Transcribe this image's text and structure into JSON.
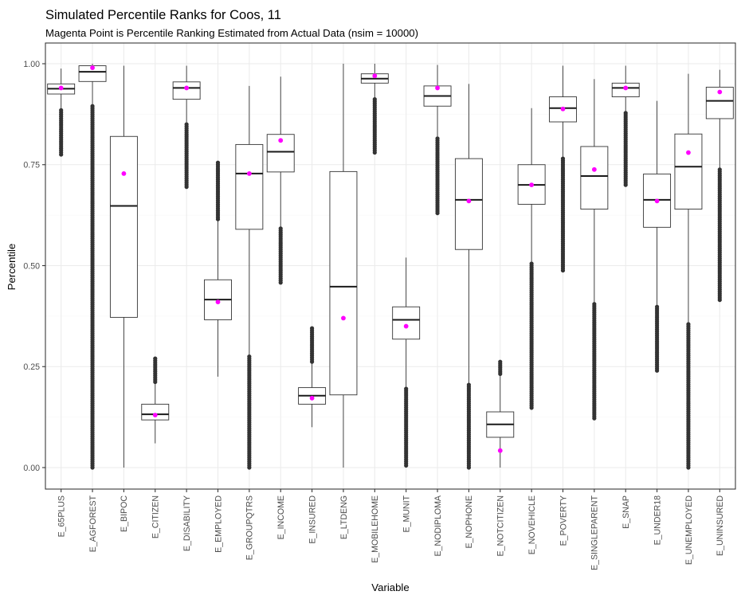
{
  "chart_data": {
    "type": "boxplot",
    "title": "Simulated Percentile Ranks for Coos, 11",
    "subtitle": "Magenta Point is Percentile Ranking Estimated from Actual Data (nsim = 10000)",
    "xlabel": "Variable",
    "ylabel": "Percentile",
    "ylim": [
      -0.04,
      1.04
    ],
    "yticks": [
      0.0,
      0.25,
      0.5,
      0.75,
      1.0
    ],
    "ytick_labels": [
      "0.00",
      "0.25",
      "0.50",
      "0.75",
      "1.00"
    ],
    "grid": true,
    "colors": {
      "box_outline": "#333333",
      "outlier": "#333333",
      "actual_point": "#ff00ff",
      "grid_major": "#ebebeb",
      "grid_minor": "#f5f5f5"
    },
    "categories": [
      "E_65PLUS",
      "E_AGFOREST",
      "E_BIPOC",
      "E_CITIZEN",
      "E_DISABILITY",
      "E_EMPLOYED",
      "E_GROUPQTRS",
      "E_INCOME",
      "E_INSURED",
      "E_LTDENG",
      "E_MOBILEHOME",
      "E_MUNIT",
      "E_NODIPLOMA",
      "E_NOPHONE",
      "E_NOTCITIZEN",
      "E_NOVEHICLE",
      "E_POVERTY",
      "E_SINGLEPARENT",
      "E_SNAP",
      "E_UNDER18",
      "E_UNEMPLOYED",
      "E_UNINSURED"
    ],
    "boxes": [
      {
        "whisker_low": 0.885,
        "q1": 0.925,
        "median": 0.938,
        "q3": 0.95,
        "whisker_high": 0.988,
        "outlier_range": [
          0.775,
          0.885
        ],
        "actual": 0.94
      },
      {
        "whisker_low": 0.895,
        "q1": 0.956,
        "median": 0.98,
        "q3": 0.995,
        "whisker_high": 1.0,
        "outlier_range": [
          0.0,
          0.895
        ],
        "actual": 0.99
      },
      {
        "whisker_low": 0.0,
        "q1": 0.372,
        "median": 0.648,
        "q3": 0.82,
        "whisker_high": 0.995,
        "outlier_range": null,
        "actual": 0.728
      },
      {
        "whisker_low": 0.06,
        "q1": 0.118,
        "median": 0.132,
        "q3": 0.157,
        "whisker_high": 0.212,
        "outlier_range": [
          0.212,
          0.27
        ],
        "actual": 0.13
      },
      {
        "whisker_low": 0.855,
        "q1": 0.912,
        "median": 0.94,
        "q3": 0.955,
        "whisker_high": 0.995,
        "outlier_range": [
          0.695,
          0.85
        ],
        "actual": 0.94
      },
      {
        "whisker_low": 0.225,
        "q1": 0.366,
        "median": 0.416,
        "q3": 0.465,
        "whisker_high": 0.615,
        "outlier_range": [
          0.615,
          0.755
        ],
        "actual": 0.41
      },
      {
        "whisker_low": 0.28,
        "q1": 0.59,
        "median": 0.728,
        "q3": 0.8,
        "whisker_high": 0.945,
        "outlier_range": [
          0.0,
          0.275
        ],
        "actual": 0.728
      },
      {
        "whisker_low": 0.595,
        "q1": 0.732,
        "median": 0.782,
        "q3": 0.825,
        "whisker_high": 0.968,
        "outlier_range": [
          0.458,
          0.592
        ],
        "actual": 0.81
      },
      {
        "whisker_low": 0.1,
        "q1": 0.157,
        "median": 0.178,
        "q3": 0.198,
        "whisker_high": 0.262,
        "outlier_range": [
          0.262,
          0.345
        ],
        "actual": 0.172
      },
      {
        "whisker_low": 0.0,
        "q1": 0.18,
        "median": 0.448,
        "q3": 0.733,
        "whisker_high": 1.0,
        "outlier_range": null,
        "actual": 0.37
      },
      {
        "whisker_low": 0.915,
        "q1": 0.952,
        "median": 0.963,
        "q3": 0.975,
        "whisker_high": 1.0,
        "outlier_range": [
          0.78,
          0.912
        ],
        "actual": 0.97
      },
      {
        "whisker_low": 0.2,
        "q1": 0.318,
        "median": 0.366,
        "q3": 0.398,
        "whisker_high": 0.52,
        "outlier_range": [
          0.005,
          0.195
        ],
        "actual": 0.35
      },
      {
        "whisker_low": 0.82,
        "q1": 0.895,
        "median": 0.92,
        "q3": 0.945,
        "whisker_high": 0.997,
        "outlier_range": [
          0.63,
          0.815
        ],
        "actual": 0.94
      },
      {
        "whisker_low": 0.205,
        "q1": 0.54,
        "median": 0.663,
        "q3": 0.765,
        "whisker_high": 0.95,
        "outlier_range": [
          0.0,
          0.205
        ],
        "actual": 0.66
      },
      {
        "whisker_low": 0.0,
        "q1": 0.075,
        "median": 0.107,
        "q3": 0.138,
        "whisker_high": 0.232,
        "outlier_range": [
          0.232,
          0.262
        ],
        "actual": 0.042
      },
      {
        "whisker_low": 0.51,
        "q1": 0.652,
        "median": 0.7,
        "q3": 0.75,
        "whisker_high": 0.89,
        "outlier_range": [
          0.148,
          0.505
        ],
        "actual": 0.7
      },
      {
        "whisker_low": 0.77,
        "q1": 0.856,
        "median": 0.89,
        "q3": 0.918,
        "whisker_high": 0.995,
        "outlier_range": [
          0.488,
          0.765
        ],
        "actual": 0.888
      },
      {
        "whisker_low": 0.408,
        "q1": 0.64,
        "median": 0.722,
        "q3": 0.795,
        "whisker_high": 0.962,
        "outlier_range": [
          0.122,
          0.405
        ],
        "actual": 0.738
      },
      {
        "whisker_low": 0.88,
        "q1": 0.918,
        "median": 0.94,
        "q3": 0.952,
        "whisker_high": 0.995,
        "outlier_range": [
          0.7,
          0.878
        ],
        "actual": 0.94
      },
      {
        "whisker_low": 0.4,
        "q1": 0.595,
        "median": 0.663,
        "q3": 0.727,
        "whisker_high": 0.908,
        "outlier_range": [
          0.24,
          0.398
        ],
        "actual": 0.66
      },
      {
        "whisker_low": 0.36,
        "q1": 0.64,
        "median": 0.745,
        "q3": 0.826,
        "whisker_high": 0.975,
        "outlier_range": [
          0.0,
          0.355
        ],
        "actual": 0.78
      },
      {
        "whisker_low": 0.74,
        "q1": 0.864,
        "median": 0.908,
        "q3": 0.942,
        "whisker_high": 0.985,
        "outlier_range": [
          0.415,
          0.738
        ],
        "actual": 0.93
      }
    ]
  }
}
